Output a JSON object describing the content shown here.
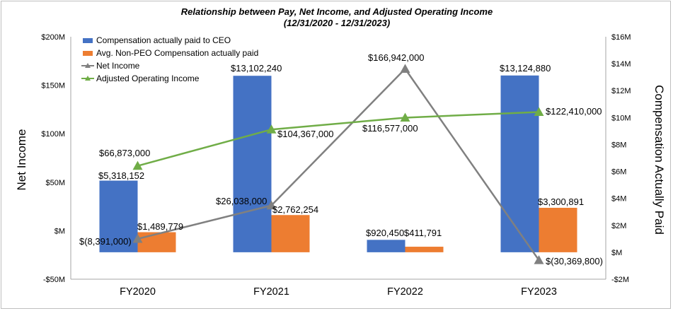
{
  "chart_data": {
    "type": "bar",
    "title": "Relationship between Pay, Net Income, and Adjusted Operating Income",
    "subtitle": "(12/31/2020 - 12/31/2023)",
    "categories": [
      "FY2020",
      "FY2021",
      "FY2022",
      "FY2023"
    ],
    "left_axis": {
      "label": "Net Income",
      "range": [
        -50,
        200
      ],
      "ticks": [
        -50,
        0,
        50,
        100,
        150,
        200
      ],
      "tick_labels": [
        "-$50M",
        "$M",
        "$50M",
        "$100M",
        "$150M",
        "$200M"
      ]
    },
    "right_axis": {
      "label": "Compensation Actually Paid",
      "range": [
        -2,
        16
      ],
      "ticks": [
        -2,
        0,
        2,
        4,
        6,
        8,
        10,
        12,
        14,
        16
      ],
      "tick_labels": [
        "-$2M",
        "$M",
        "$2M",
        "$4M",
        "$6M",
        "$8M",
        "$10M",
        "$12M",
        "$14M",
        "$16M"
      ]
    },
    "gridlines": false,
    "legend_position": "top-left",
    "series": [
      {
        "name": "Compensation actually paid to CEO",
        "kind": "bar",
        "axis": "right",
        "color": "#4472C4",
        "values": [
          5318152,
          13102240,
          920450,
          13124880
        ],
        "labels": [
          "$5,318,152",
          "$13,102,240",
          "$920,450",
          "$13,124,880"
        ]
      },
      {
        "name": "Avg. Non-PEO Compensation actually paid",
        "kind": "bar",
        "axis": "right",
        "color": "#ED7D31",
        "values": [
          1489779,
          2762254,
          411791,
          3300891
        ],
        "labels": [
          "$1,489,779",
          "$2,762,254",
          "$411,791",
          "$3,300,891"
        ]
      },
      {
        "name": "Net Income",
        "kind": "line",
        "axis": "left",
        "color": "#808080",
        "values": [
          -8391000,
          26038000,
          166942000,
          -30369800
        ],
        "labels": [
          "$(8,391,000)",
          "$26,038,000",
          "$166,942,000",
          "$(30,369,800)"
        ]
      },
      {
        "name": "Adjusted Operating Income",
        "kind": "line",
        "axis": "left",
        "color": "#70AD47",
        "values": [
          66873000,
          104367000,
          116577000,
          122410000
        ],
        "labels": [
          "$66,873,000",
          "$104,367,000",
          "$116,577,000",
          "$122,410,000"
        ]
      }
    ]
  }
}
